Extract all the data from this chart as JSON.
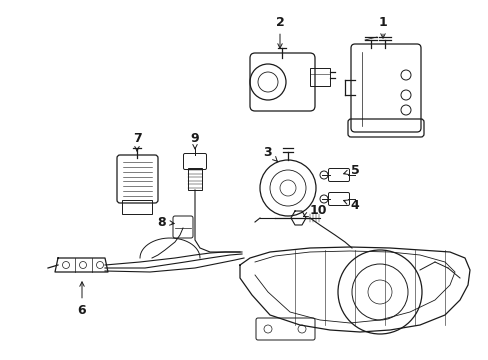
{
  "bg_color": "#ffffff",
  "line_color": "#1a1a1a",
  "fig_width": 4.89,
  "fig_height": 3.6,
  "dpi": 100,
  "label_positions": {
    "1": [
      0.785,
      0.895,
      0.745,
      0.84
    ],
    "2": [
      0.54,
      0.895,
      0.53,
      0.82
    ],
    "3": [
      0.5,
      0.63,
      0.5,
      0.57
    ],
    "4": [
      0.7,
      0.455,
      0.66,
      0.455
    ],
    "5": [
      0.705,
      0.515,
      0.665,
      0.515
    ],
    "6": [
      0.13,
      0.175,
      0.13,
      0.25
    ],
    "7": [
      0.27,
      0.66,
      0.255,
      0.6
    ],
    "8": [
      0.215,
      0.485,
      0.25,
      0.485
    ],
    "9": [
      0.395,
      0.66,
      0.385,
      0.6
    ],
    "10": [
      0.62,
      0.42,
      0.575,
      0.435
    ]
  }
}
